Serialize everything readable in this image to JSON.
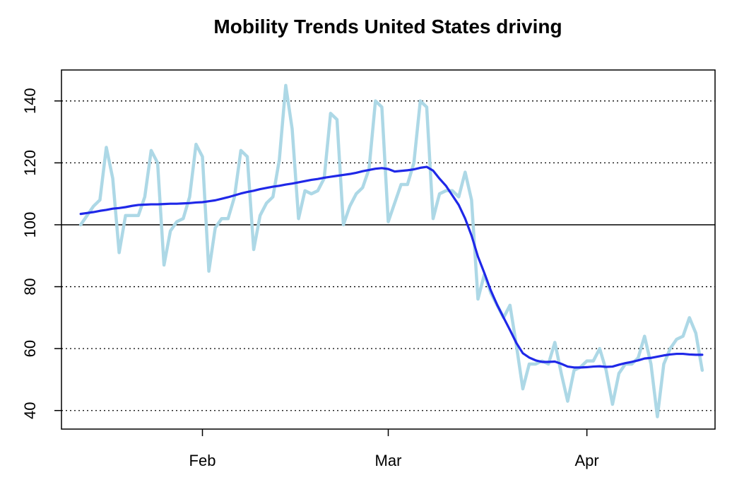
{
  "chart_data": {
    "type": "line",
    "title": "Mobility Trends United States driving",
    "xlabel": "",
    "ylabel": "",
    "x_start": "2020-01-13",
    "x_end": "2020-04-18",
    "xlim": [
      "2020-01-10",
      "2020-04-21"
    ],
    "ylim": [
      34,
      150
    ],
    "x_ticks": [
      {
        "date": "2020-02-01",
        "label": "Feb"
      },
      {
        "date": "2020-03-01",
        "label": "Mar"
      },
      {
        "date": "2020-04-01",
        "label": "Apr"
      }
    ],
    "y_ticks": [
      40,
      60,
      80,
      100,
      120,
      140
    ],
    "grid": "horizontal-dotted",
    "reference_line": 100,
    "legend": "none",
    "series": [
      {
        "color": "#add8e6",
        "style": "daily",
        "values": [
          100,
          103,
          106,
          108,
          125,
          115,
          91,
          103,
          103,
          103,
          109,
          124,
          120,
          87,
          98,
          101,
          102,
          109,
          126,
          122,
          85,
          99,
          102,
          102,
          109,
          124,
          122,
          92,
          103,
          107,
          109,
          121,
          145,
          131,
          102,
          111,
          110,
          111,
          115,
          136,
          134,
          100,
          106,
          110,
          112,
          118,
          140,
          138,
          101,
          107,
          113,
          113,
          120,
          140,
          138,
          102,
          110,
          111,
          111,
          109,
          117,
          108,
          76,
          84,
          78,
          74,
          70,
          74,
          61,
          47,
          55,
          55,
          56,
          55,
          62,
          52,
          43,
          53,
          54,
          56,
          56,
          60,
          53,
          42,
          52,
          55,
          55,
          57,
          64,
          55,
          38,
          55,
          60,
          63,
          64,
          70,
          65,
          53
        ]
      },
      {
        "color": "#1f28e8",
        "style": "smoothed",
        "values": [
          103.5,
          103.8,
          104.1,
          104.5,
          104.8,
          105.2,
          105.4,
          105.7,
          106.1,
          106.4,
          106.5,
          106.6,
          106.6,
          106.7,
          106.8,
          106.8,
          106.9,
          107.0,
          107.2,
          107.3,
          107.6,
          107.9,
          108.4,
          108.9,
          109.5,
          110.1,
          110.6,
          111.0,
          111.5,
          111.9,
          112.3,
          112.6,
          113.0,
          113.3,
          113.7,
          114.1,
          114.5,
          114.8,
          115.2,
          115.5,
          115.8,
          116.1,
          116.4,
          116.8,
          117.3,
          117.7,
          118.1,
          118.3,
          118.0,
          117.2,
          117.4,
          117.6,
          117.9,
          118.4,
          118.7,
          117.5,
          114.9,
          112.6,
          109.5,
          106.4,
          102.0,
          96.5,
          89.7,
          84.4,
          78.8,
          74.1,
          70.0,
          66.0,
          61.8,
          58.5,
          57.1,
          56.2,
          55.7,
          55.7,
          55.8,
          55.1,
          54.2,
          53.9,
          53.9,
          54.0,
          54.2,
          54.3,
          54.1,
          54.2,
          54.8,
          55.3,
          55.7,
          56.2,
          56.8,
          57.0,
          57.4,
          57.8,
          58.1,
          58.3,
          58.3,
          58.1,
          58.0,
          58.0
        ]
      }
    ]
  }
}
